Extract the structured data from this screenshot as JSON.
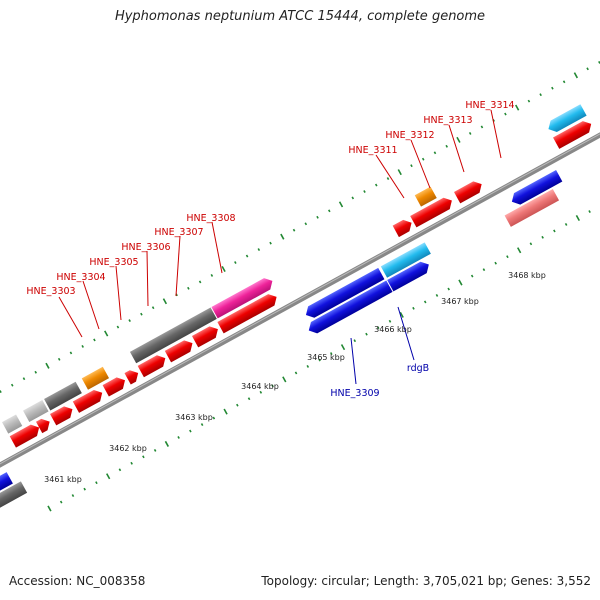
{
  "title": "Hyphomonas neptunium ATCC 15444, complete genome",
  "footer": {
    "accession": "Accession: NC_008358",
    "summary": "Topology: circular; Length: 3,705,021 bp; Genes: 3,552"
  },
  "scale": {
    "unit": "kbp",
    "ticks": [
      {
        "label": "3461 kbp"
      },
      {
        "label": "3462 kbp"
      },
      {
        "label": "3463 kbp"
      },
      {
        "label": "3464 kbp"
      },
      {
        "label": "3465 kbp"
      },
      {
        "label": "3466 kbp"
      },
      {
        "label": "3467 kbp"
      },
      {
        "label": "3468 kbp"
      }
    ]
  },
  "colors": {
    "forward_cds": "#ee0000",
    "reverse_cds": "#1111dd",
    "light_blue": "#22bbee",
    "gray": "#666666",
    "light_gray": "#bbbbbb",
    "orange": "#ee8800",
    "pink": "#ee2299",
    "salmon": "#ee7777",
    "label_forward": "#cc0000",
    "label_reverse": "#0000aa",
    "backbone": "#888888",
    "dots": "#228833"
  },
  "gene_labels": {
    "forward": [
      {
        "text": "HNE_3303"
      },
      {
        "text": "HNE_3304"
      },
      {
        "text": "HNE_3305"
      },
      {
        "text": "HNE_3306"
      },
      {
        "text": "HNE_3307"
      },
      {
        "text": "HNE_3308"
      },
      {
        "text": "HNE_3311"
      },
      {
        "text": "HNE_3312"
      },
      {
        "text": "HNE_3313"
      },
      {
        "text": "HNE_3314"
      }
    ],
    "reverse": [
      {
        "text": "HNE_3309"
      },
      {
        "text": "rdgB"
      }
    ]
  }
}
